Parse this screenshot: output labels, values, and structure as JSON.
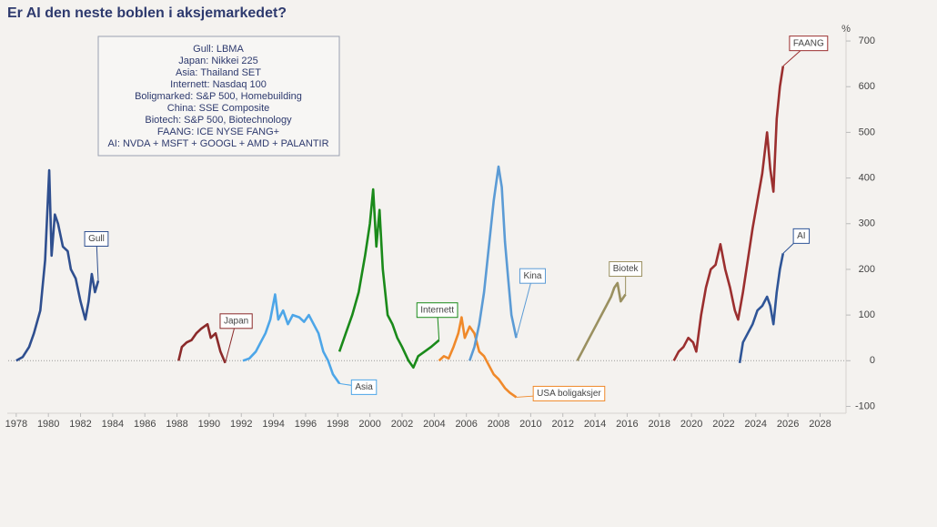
{
  "chart_data": {
    "type": "line",
    "title": "Er AI den neste boblen i aksjemarkedet?",
    "y_unit": "%",
    "notes": [
      "Gull: LBMA",
      "Japan: Nikkei 225",
      "Asia: Thailand SET",
      "Internett: Nasdaq 100",
      "Boligmarked: S&P 500, Homebuilding",
      "China: SSE Composite",
      "Biotech: S&P 500, Biotechnology",
      "FAANG: ICE NYSE FANG+",
      "AI: NVDA + MSFT + GOOGL + AMD + PALANTIR"
    ],
    "xlim": [
      1977.5,
      2029.5
    ],
    "xticks": [
      1978,
      1980,
      1982,
      1984,
      1986,
      1988,
      1990,
      1992,
      1994,
      1996,
      1998,
      2000,
      2002,
      2004,
      2006,
      2008,
      2010,
      2012,
      2014,
      2016,
      2018,
      2020,
      2022,
      2024,
      2026,
      2028
    ],
    "ylim": [
      -115,
      730
    ],
    "yticks": [
      -100,
      0,
      100,
      200,
      300,
      400,
      500,
      600,
      700
    ],
    "zero_line": true,
    "series": [
      {
        "name": "Gull",
        "color": "#2f4f8f",
        "x": [
          1978.0,
          1978.4,
          1978.8,
          1979.1,
          1979.5,
          1979.8,
          1980.05,
          1980.2,
          1980.4,
          1980.6,
          1980.9,
          1981.2,
          1981.4,
          1981.7,
          1982.0,
          1982.3,
          1982.5,
          1982.7,
          1982.9,
          1983.1
        ],
        "values": [
          0,
          8,
          30,
          60,
          110,
          220,
          417,
          230,
          320,
          300,
          250,
          240,
          200,
          180,
          130,
          90,
          130,
          190,
          150,
          175
        ]
      },
      {
        "name": "Japan",
        "color": "#8b2a2a",
        "x": [
          1988.1,
          1988.3,
          1988.6,
          1988.9,
          1989.2,
          1989.5,
          1989.9,
          1990.1,
          1990.4,
          1990.7,
          1991.0
        ],
        "values": [
          0,
          30,
          40,
          45,
          60,
          70,
          80,
          50,
          60,
          20,
          -5
        ]
      },
      {
        "name": "Asia",
        "color": "#4da6e8",
        "x": [
          1992.1,
          1992.5,
          1992.9,
          1993.2,
          1993.5,
          1993.8,
          1994.1,
          1994.3,
          1994.6,
          1994.9,
          1995.2,
          1995.6,
          1995.9,
          1996.2,
          1996.5,
          1996.8,
          1997.1,
          1997.4,
          1997.7,
          1998.1
        ],
        "values": [
          0,
          5,
          20,
          40,
          60,
          90,
          145,
          90,
          110,
          80,
          100,
          95,
          85,
          100,
          80,
          60,
          20,
          0,
          -30,
          -50
        ]
      },
      {
        "name": "Internett",
        "color": "#1a8a1a",
        "x": [
          1998.1,
          1998.5,
          1998.9,
          1999.3,
          1999.7,
          2000.0,
          2000.2,
          2000.4,
          2000.6,
          2000.8,
          2001.1,
          2001.4,
          2001.7,
          2002.0,
          2002.4,
          2002.7,
          2003.0,
          2003.4,
          2003.8,
          2004.3
        ],
        "values": [
          20,
          60,
          100,
          150,
          230,
          300,
          375,
          250,
          330,
          200,
          100,
          80,
          50,
          30,
          0,
          -15,
          10,
          20,
          30,
          45
        ]
      },
      {
        "name": "USA boligaksjer",
        "color": "#f0892a",
        "x": [
          2004.3,
          2004.6,
          2004.9,
          2005.2,
          2005.5,
          2005.7,
          2005.9,
          2006.2,
          2006.5,
          2006.8,
          2007.1,
          2007.4,
          2007.7,
          2008.0,
          2008.4,
          2008.7,
          2009.1
        ],
        "values": [
          0,
          10,
          5,
          30,
          60,
          95,
          50,
          75,
          60,
          20,
          10,
          -10,
          -30,
          -40,
          -60,
          -70,
          -80
        ]
      },
      {
        "name": "Kina",
        "color": "#5b9bd5",
        "x": [
          2006.2,
          2006.5,
          2006.8,
          2007.1,
          2007.4,
          2007.7,
          2008.0,
          2008.2,
          2008.4,
          2008.6,
          2008.8,
          2009.1
        ],
        "values": [
          0,
          30,
          80,
          150,
          250,
          350,
          425,
          380,
          260,
          180,
          100,
          50
        ]
      },
      {
        "name": "Biotek",
        "color": "#9a9060",
        "x": [
          2012.9,
          2013.2,
          2013.5,
          2013.8,
          2014.1,
          2014.4,
          2014.7,
          2015.0,
          2015.2,
          2015.4,
          2015.6,
          2015.9
        ],
        "values": [
          0,
          20,
          40,
          60,
          80,
          100,
          120,
          140,
          160,
          170,
          130,
          145
        ]
      },
      {
        "name": "FAANG",
        "color": "#9b2f2f",
        "x": [
          2018.9,
          2019.2,
          2019.5,
          2019.8,
          2020.1,
          2020.3,
          2020.6,
          2020.9,
          2021.2,
          2021.5,
          2021.8,
          2022.1,
          2022.4,
          2022.7,
          2022.9,
          2023.2,
          2023.5,
          2023.8,
          2024.1,
          2024.4,
          2024.7,
          2024.9,
          2025.1,
          2025.3,
          2025.5,
          2025.7
        ],
        "values": [
          0,
          20,
          30,
          50,
          40,
          20,
          100,
          160,
          200,
          210,
          255,
          200,
          160,
          110,
          90,
          150,
          220,
          290,
          350,
          410,
          500,
          420,
          370,
          530,
          600,
          645
        ]
      },
      {
        "name": "AI",
        "color": "#2f5597",
        "x": [
          2023.0,
          2023.2,
          2023.5,
          2023.8,
          2024.1,
          2024.4,
          2024.7,
          2024.9,
          2025.1,
          2025.3,
          2025.5,
          2025.7
        ],
        "values": [
          -5,
          40,
          60,
          80,
          110,
          120,
          140,
          120,
          80,
          150,
          200,
          235
        ]
      }
    ]
  }
}
